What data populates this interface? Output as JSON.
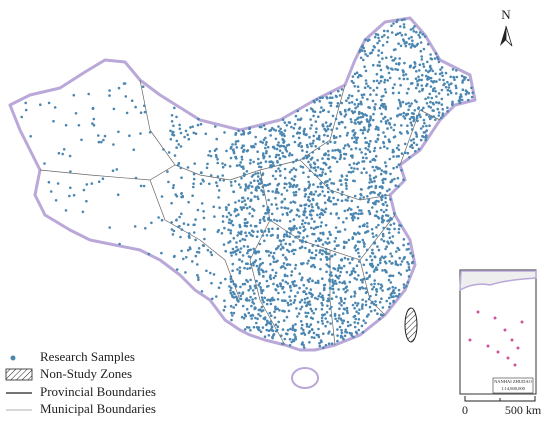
{
  "north_arrow": "N",
  "legend": [
    "Research Samples",
    "Non-Study Zones",
    "Provincial Boundaries",
    "Municipal Boundaries"
  ],
  "inset": {
    "title": "NANHAI  ZHUDAO",
    "scale": "1:14,800,000"
  },
  "scale_bar": {
    "start": "0",
    "end": "500 km"
  }
}
